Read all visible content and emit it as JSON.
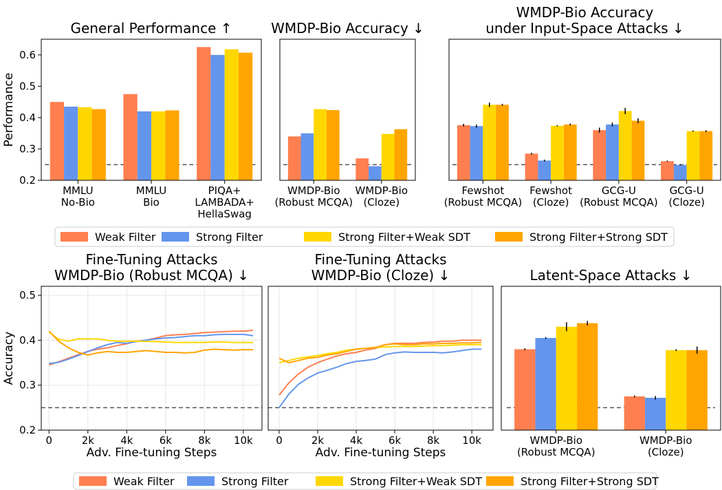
{
  "chart_data": [
    {
      "type": "bar",
      "title": "General Performance ↑",
      "ylabel": "Performance",
      "categories": [
        "MMLU\nNo-Bio",
        "MMLU\nBio",
        "PIQA+\nLAMBADA+\nHellaSwag"
      ],
      "series": [
        {
          "name": "Weak Filter",
          "color": "#ff7f50",
          "values": [
            0.45,
            0.475,
            0.625
          ]
        },
        {
          "name": "Strong Filter",
          "color": "#6495ed",
          "values": [
            0.435,
            0.42,
            0.6
          ]
        },
        {
          "name": "Strong Filter+Weak SDT",
          "color": "#ffd700",
          "values": [
            0.433,
            0.42,
            0.618
          ]
        },
        {
          "name": "Strong Filter+Strong SDT",
          "color": "#ffa500",
          "values": [
            0.427,
            0.423,
            0.607
          ]
        }
      ],
      "ylim": [
        0.2,
        0.65
      ],
      "yticks": [
        0.2,
        0.3,
        0.4,
        0.5,
        0.6
      ],
      "reference_line": 0.25,
      "legend": "below"
    },
    {
      "type": "bar",
      "title": "WMDP-Bio Accuracy ↓",
      "categories": [
        "WMDP-Bio\n(Robust MCQA)",
        "WMDP-Bio\n(Cloze)"
      ],
      "series": [
        {
          "name": "Weak Filter",
          "color": "#ff7f50",
          "values": [
            0.34,
            0.27
          ]
        },
        {
          "name": "Strong Filter",
          "color": "#6495ed",
          "values": [
            0.35,
            0.245
          ]
        },
        {
          "name": "Strong Filter+Weak SDT",
          "color": "#ffd700",
          "values": [
            0.427,
            0.348
          ]
        },
        {
          "name": "Strong Filter+Strong SDT",
          "color": "#ffa500",
          "values": [
            0.424,
            0.363
          ]
        }
      ],
      "ylim": [
        0.2,
        0.65
      ],
      "reference_line": 0.25
    },
    {
      "type": "bar",
      "title": "WMDP-Bio Accuracy\nunder Input-Space Attacks ↓",
      "categories": [
        "Fewshot\n(Robust MCQA)",
        "Fewshot\n(Cloze)",
        "GCG-U\n(Robust MCQA)",
        "GCG-U\n(Cloze)"
      ],
      "series": [
        {
          "name": "Weak Filter",
          "color": "#ff7f50",
          "values": [
            0.376,
            0.285,
            0.36,
            0.261
          ],
          "errors": [
            0.004,
            0.003,
            0.008,
            0.002
          ]
        },
        {
          "name": "Strong Filter",
          "color": "#6495ed",
          "values": [
            0.373,
            0.263,
            0.378,
            0.249
          ],
          "errors": [
            0.005,
            0.003,
            0.006,
            0.002
          ]
        },
        {
          "name": "Strong Filter+Weak SDT",
          "color": "#ffd700",
          "values": [
            0.441,
            0.374,
            0.421,
            0.357
          ],
          "errors": [
            0.007,
            0.002,
            0.01,
            0.002
          ]
        },
        {
          "name": "Strong Filter+Strong SDT",
          "color": "#ffa500",
          "values": [
            0.441,
            0.378,
            0.39,
            0.357
          ],
          "errors": [
            0.003,
            0.003,
            0.008,
            0.003
          ]
        }
      ],
      "ylim": [
        0.2,
        0.65
      ],
      "reference_line": 0.25
    },
    {
      "type": "line",
      "title": "Fine-Tuning Attacks\nWMDP-Bio (Robust MCQA) ↓",
      "ylabel": "Accuracy",
      "xlabel": "Adv. Fine-tuning Steps",
      "x": [
        0,
        500,
        1000,
        1500,
        2000,
        2500,
        3000,
        3500,
        4000,
        4500,
        5000,
        5500,
        6000,
        6500,
        7000,
        7500,
        8000,
        8500,
        9000,
        9500,
        10000,
        10500
      ],
      "series": [
        {
          "name": "Weak Filter",
          "color": "#ff7f50",
          "values": [
            0.345,
            0.352,
            0.36,
            0.368,
            0.375,
            0.38,
            0.383,
            0.388,
            0.392,
            0.398,
            0.4,
            0.405,
            0.41,
            0.412,
            0.413,
            0.415,
            0.417,
            0.418,
            0.419,
            0.42,
            0.42,
            0.422
          ]
        },
        {
          "name": "Strong Filter",
          "color": "#6495ed",
          "values": [
            0.348,
            0.351,
            0.358,
            0.366,
            0.375,
            0.383,
            0.39,
            0.395,
            0.393,
            0.397,
            0.4,
            0.403,
            0.405,
            0.406,
            0.408,
            0.41,
            0.41,
            0.412,
            0.413,
            0.413,
            0.413,
            0.41
          ]
        },
        {
          "name": "Strong Filter+Weak SDT",
          "color": "#ffd700",
          "values": [
            0.418,
            0.402,
            0.398,
            0.403,
            0.403,
            0.403,
            0.4,
            0.398,
            0.398,
            0.398,
            0.397,
            0.397,
            0.396,
            0.395,
            0.395,
            0.395,
            0.395,
            0.396,
            0.396,
            0.395,
            0.395,
            0.395
          ]
        },
        {
          "name": "Strong Filter+Strong SDT",
          "color": "#ffa500",
          "values": [
            0.42,
            0.398,
            0.383,
            0.373,
            0.367,
            0.372,
            0.375,
            0.373,
            0.373,
            0.375,
            0.377,
            0.375,
            0.373,
            0.373,
            0.372,
            0.373,
            0.378,
            0.38,
            0.379,
            0.378,
            0.379,
            0.379
          ]
        }
      ],
      "xlim": [
        -400,
        10960
      ],
      "xticks": [
        0,
        {
          "value": 2000,
          "label": "2k"
        },
        {
          "value": 4000,
          "label": "4k"
        },
        {
          "value": 6000,
          "label": "6k"
        },
        {
          "value": 8000,
          "label": "8k"
        },
        {
          "value": 10000,
          "label": "10k"
        }
      ],
      "ylim": [
        0.2,
        0.52
      ],
      "yticks": [
        0.2,
        0.3,
        0.4,
        0.5
      ],
      "grid": true,
      "reference_line": 0.25,
      "legend": "below"
    },
    {
      "type": "line",
      "title": "Fine-Tuning Attacks\nWMDP-Bio (Cloze) ↓",
      "xlabel": "Adv. Fine-tuning Steps",
      "x": [
        0,
        500,
        1000,
        1500,
        2000,
        2500,
        3000,
        3500,
        4000,
        4500,
        5000,
        5500,
        6000,
        6500,
        7000,
        7500,
        8000,
        8500,
        9000,
        9500,
        10000,
        10500
      ],
      "series": [
        {
          "name": "Weak Filter",
          "color": "#ff7f50",
          "values": [
            0.278,
            0.305,
            0.325,
            0.34,
            0.35,
            0.358,
            0.365,
            0.37,
            0.373,
            0.378,
            0.382,
            0.39,
            0.393,
            0.393,
            0.393,
            0.395,
            0.396,
            0.398,
            0.398,
            0.4,
            0.4,
            0.4
          ]
        },
        {
          "name": "Strong Filter",
          "color": "#6495ed",
          "values": [
            0.25,
            0.28,
            0.302,
            0.316,
            0.327,
            0.333,
            0.34,
            0.348,
            0.353,
            0.355,
            0.358,
            0.368,
            0.372,
            0.374,
            0.373,
            0.373,
            0.373,
            0.372,
            0.374,
            0.377,
            0.38,
            0.38
          ]
        },
        {
          "name": "Strong Filter+Weak SDT",
          "color": "#ffd700",
          "values": [
            0.35,
            0.355,
            0.36,
            0.363,
            0.366,
            0.37,
            0.373,
            0.378,
            0.38,
            0.382,
            0.384,
            0.385,
            0.386,
            0.386,
            0.386,
            0.387,
            0.388,
            0.388,
            0.389,
            0.39,
            0.39,
            0.39
          ]
        },
        {
          "name": "Strong Filter+Strong SDT",
          "color": "#ffa500",
          "values": [
            0.36,
            0.35,
            0.355,
            0.36,
            0.362,
            0.367,
            0.37,
            0.375,
            0.38,
            0.382,
            0.384,
            0.39,
            0.392,
            0.39,
            0.39,
            0.392,
            0.392,
            0.393,
            0.393,
            0.394,
            0.394,
            0.395
          ]
        }
      ],
      "xlim": [
        -570,
        11100
      ],
      "xticks": [
        0,
        {
          "value": 2000,
          "label": "2k"
        },
        {
          "value": 4000,
          "label": "4k"
        },
        {
          "value": 6000,
          "label": "6k"
        },
        {
          "value": 8000,
          "label": "8k"
        },
        {
          "value": 10000,
          "label": "10k"
        }
      ],
      "ylim": [
        0.2,
        0.52
      ],
      "grid": true,
      "reference_line": 0.25
    },
    {
      "type": "bar",
      "title": "Latent-Space Attacks ↓",
      "categories": [
        "WMDP-Bio\n(Robust MCQA)",
        "WMDP-Bio\n(Cloze)"
      ],
      "series": [
        {
          "name": "Weak Filter",
          "color": "#ff7f50",
          "values": [
            0.38,
            0.275
          ],
          "errors": [
            0.002,
            0.002
          ]
        },
        {
          "name": "Strong Filter",
          "color": "#6495ed",
          "values": [
            0.405,
            0.272
          ],
          "errors": [
            0.002,
            0.004
          ]
        },
        {
          "name": "Strong Filter+Weak SDT",
          "color": "#ffd700",
          "values": [
            0.43,
            0.378
          ],
          "errors": [
            0.01,
            0.002
          ]
        },
        {
          "name": "Strong Filter+Strong SDT",
          "color": "#ffa500",
          "values": [
            0.438,
            0.378
          ],
          "errors": [
            0.005,
            0.008
          ]
        }
      ],
      "ylim": [
        0.2,
        0.52
      ],
      "reference_line": 0.25
    }
  ]
}
